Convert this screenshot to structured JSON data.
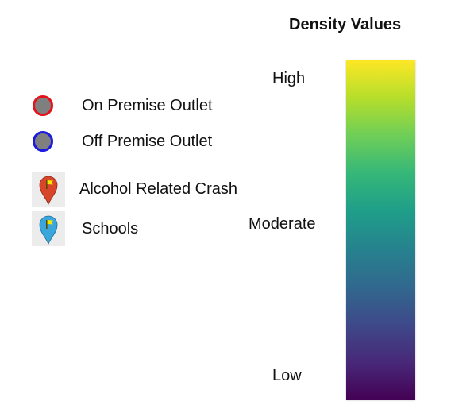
{
  "legend": {
    "title": "Density Values",
    "items": [
      {
        "label": "On Premise Outlet",
        "marker": "circle",
        "icon": "red-ring-circle-icon",
        "border_color": "#e3121b"
      },
      {
        "label": "Off Premise Outlet",
        "marker": "circle",
        "icon": "blue-ring-circle-icon",
        "border_color": "#1a1ae0"
      },
      {
        "label": "Alcohol Related Crash",
        "marker": "pin",
        "icon": "red-flag-pin-icon",
        "pin_color": "#d9452b"
      },
      {
        "label": "Schools",
        "marker": "pin",
        "icon": "blue-flag-pin-icon",
        "pin_color": "#3aa6dc"
      }
    ]
  },
  "scale": {
    "high_label": "High",
    "moderate_label": "Moderate",
    "low_label": "Low",
    "colormap": "viridis",
    "colors": [
      "#fde725",
      "#b5de2b",
      "#6ece58",
      "#35b779",
      "#1f9e89",
      "#26828e",
      "#31688e",
      "#3e4989",
      "#482878",
      "#440154"
    ]
  },
  "icon_flag_color": "#f5e600"
}
